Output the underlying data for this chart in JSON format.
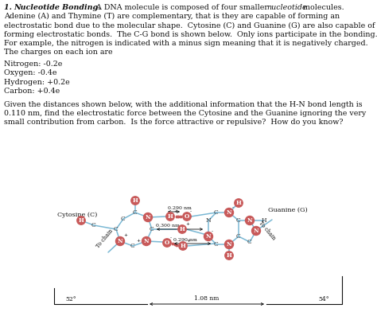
{
  "bg_color": "#ffffff",
  "text_color": "#111111",
  "bond_color": "#7ab8d4",
  "node_color": "#c85a5a",
  "font_family": "serif",
  "title_bold_italic": "1. Nucleotide Bonding.",
  "title_normal_pre": "  A DNA molecule is composed of four smaller ",
  "title_italic_word": "nucleotide",
  "title_normal_post": " molecules.",
  "p1_lines": [
    "Adenine (A) and Thymine (T) are complementary, that is they are capable of forming an",
    "electrostatic bond due to the molecular shape.  Cytosine (C) and Guanine (G) are also capable of",
    "forming electrostatic bonds.  The C-G bond is shown below.  Only ions participate in the bonding.",
    "For example, the nitrogen is indicated with a minus sign meaning that it is negatively charged.",
    "The charges on each ion are"
  ],
  "charges": [
    "Nitrogen: -0.2e",
    "Oxygen: -0.4e",
    "Hydrogen: +0.2e",
    "Carbon: +0.4e"
  ],
  "p2_lines": [
    "Given the distances shown below, with the additional information that the H-N bond length is",
    "0.110 nm, find the electrostatic force between the Cytosine and the Guanine ignoring the very",
    "small contribution from carbon.  Is the force attractive or repulsive?  How do you know?"
  ],
  "label_cytosine": "Cytosine (C)",
  "label_guanine": "Guanine (G)",
  "label_tochain": "To chain",
  "dist_top": "0.290 nm",
  "dist_mid": "0.300 nm",
  "dist_bot": "0.290 nm",
  "dist_bottom": "1.08 nm",
  "angle_left": "52°",
  "angle_right": "54°"
}
